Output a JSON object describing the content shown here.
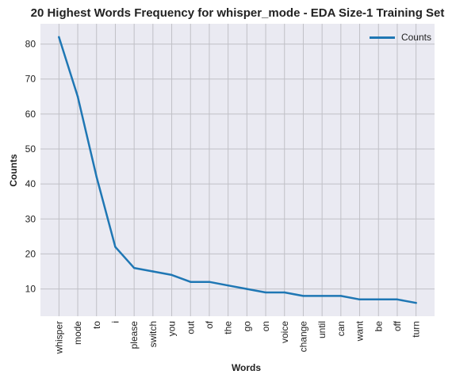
{
  "chart_data": {
    "type": "line",
    "title": "20 Highest Words Frequency for whisper_mode - EDA Size-1 Training Set",
    "xlabel": "Words",
    "ylabel": "Counts",
    "categories": [
      "whisper",
      "mode",
      "to",
      "i",
      "please",
      "switch",
      "you",
      "out",
      "of",
      "the",
      "go",
      "on",
      "voice",
      "change",
      "until",
      "can",
      "want",
      "be",
      "off",
      "turn"
    ],
    "series": [
      {
        "name": "Counts",
        "values": [
          82,
          65,
          42,
          22,
          16,
          15,
          14,
          12,
          12,
          11,
          10,
          9,
          9,
          8,
          8,
          8,
          7,
          7,
          7,
          6
        ],
        "color": "#1f77b4"
      }
    ],
    "yticks": [
      10,
      20,
      30,
      40,
      50,
      60,
      70,
      80
    ],
    "ylim": [
      2.2,
      85.8
    ],
    "grid": true,
    "legend_position": "top-right"
  }
}
